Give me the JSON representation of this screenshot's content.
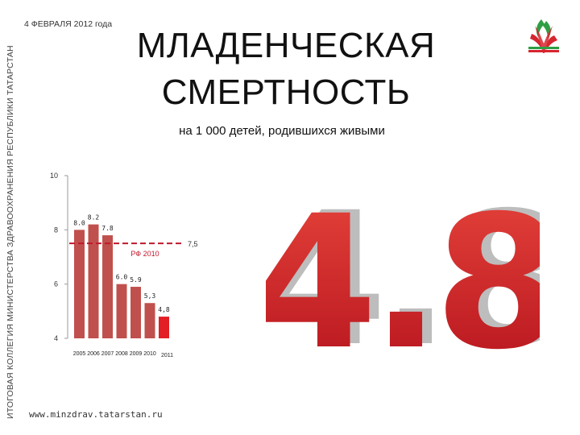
{
  "header": {
    "date": "4 ФЕВРАЛЯ 2012 года",
    "side_text": "ИТОГОВАЯ КОЛЛЕГИЯ МИНИСТЕРСТВА ЗДРАВООХРАНЕНИЯ РЕСПУБЛИКИ ТАТАРСТАН",
    "title_line1": "МЛАДЕНЧЕСКАЯ",
    "title_line2": "СМЕРТНОСТЬ",
    "subtitle": "на 1 000 детей, родившихся живыми"
  },
  "highlight": {
    "value": "4.8"
  },
  "footer": {
    "url": "www.minzdrav.tatarstan.ru"
  },
  "colors": {
    "bar": "#c0504d",
    "bar_highlight": "#e31e24",
    "reference_line": "#c0182d",
    "big_number": "#d42a2a"
  },
  "chart_data": {
    "type": "bar",
    "categories": [
      "2005",
      "2006",
      "2007",
      "2008",
      "2009",
      "2010",
      "2011"
    ],
    "values": [
      8.0,
      8.2,
      7.8,
      6.0,
      5.9,
      5.3,
      4.8
    ],
    "data_labels": [
      "8.0",
      "8.2",
      "7.8",
      "6.0",
      "5.9",
      "5,3",
      "4,8"
    ],
    "title": "",
    "xlabel": "",
    "ylabel": "",
    "ylim": [
      4,
      10
    ],
    "yticks": [
      4,
      6,
      8,
      10
    ],
    "reference": {
      "name": "РФ 2010",
      "value": 7.5,
      "label": "7,5"
    },
    "grid": false
  }
}
